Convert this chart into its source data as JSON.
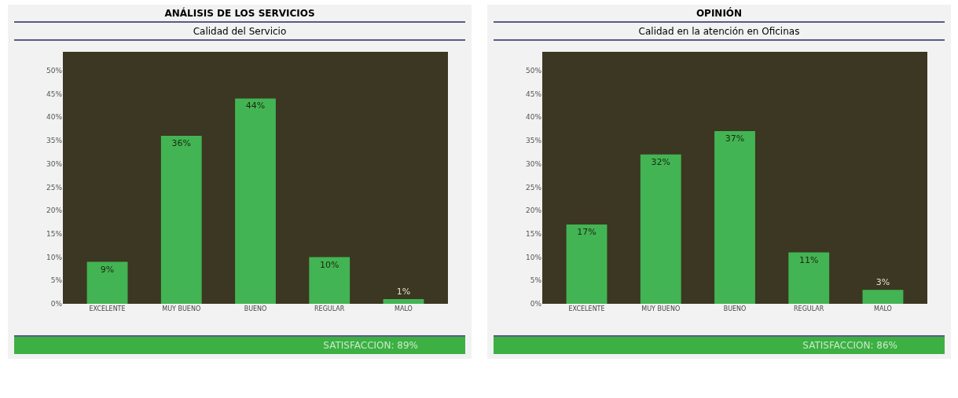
{
  "chart_data": [
    {
      "type": "bar",
      "title": "ANÁLISIS DE LOS SERVICIOS",
      "subtitle": "Calidad del Servicio",
      "categories": [
        "EXCELENTE",
        "MUY BUENO",
        "BUENO",
        "REGULAR",
        "MALO"
      ],
      "values": [
        9,
        36,
        44,
        10,
        1
      ],
      "value_labels": [
        "9%",
        "36%",
        "44%",
        "10%",
        "1%"
      ],
      "color": "#43b453",
      "ylim": [
        0,
        54
      ],
      "yticks": [
        {
          "value": 0,
          "label": "0%"
        },
        {
          "value": 5,
          "label": "5%"
        },
        {
          "value": 10,
          "label": "10%"
        },
        {
          "value": 15,
          "label": "15%"
        },
        {
          "value": 20,
          "label": "20%"
        },
        {
          "value": 25,
          "label": "25%"
        },
        {
          "value": 30,
          "label": "30%"
        },
        {
          "value": 35,
          "label": "35%"
        },
        {
          "value": 40,
          "label": "40%"
        },
        {
          "value": 45,
          "label": "45%"
        },
        {
          "value": 50,
          "label": "50%"
        }
      ],
      "annotations": [
        "SATISFACCION: 89%"
      ]
    },
    {
      "type": "bar",
      "title": "OPINIÓN",
      "subtitle": "Calidad en la atención en Oficinas",
      "categories": [
        "EXCELENTE",
        "MUY BUENO",
        "BUENO",
        "REGULAR",
        "MALO"
      ],
      "values": [
        17,
        32,
        37,
        11,
        3
      ],
      "value_labels": [
        "17%",
        "32%",
        "37%",
        "11%",
        "3%"
      ],
      "color": "#43b453",
      "ylim": [
        0,
        54
      ],
      "yticks": [
        {
          "value": 0,
          "label": "0%"
        },
        {
          "value": 5,
          "label": "5%"
        },
        {
          "value": 10,
          "label": "10%"
        },
        {
          "value": 15,
          "label": "15%"
        },
        {
          "value": 20,
          "label": "20%"
        },
        {
          "value": 25,
          "label": "25%"
        },
        {
          "value": 30,
          "label": "30%"
        },
        {
          "value": 35,
          "label": "35%"
        },
        {
          "value": 40,
          "label": "40%"
        },
        {
          "value": 45,
          "label": "45%"
        },
        {
          "value": 50,
          "label": "50%"
        }
      ],
      "annotations": [
        "SATISFACCION: 86%"
      ]
    }
  ]
}
